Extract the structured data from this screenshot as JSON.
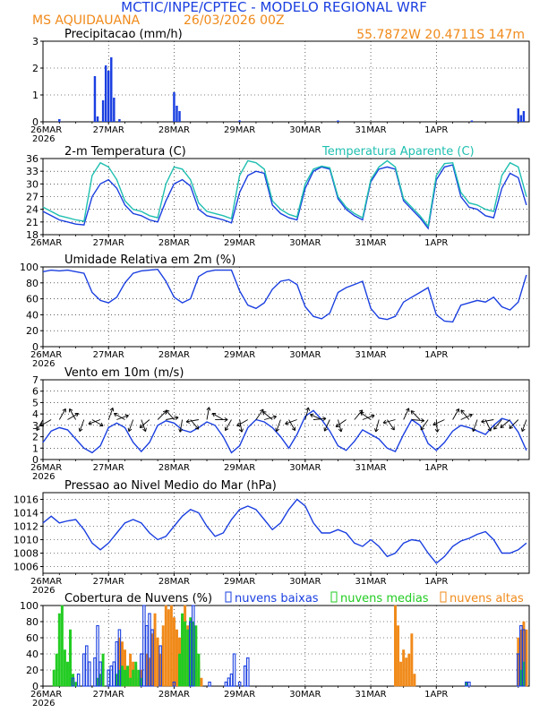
{
  "header": {
    "title": "MCTIC/INPE/CPTEC - MODELO REGIONAL WRF",
    "location": "MS AQUIDAUANA",
    "run": "26/03/2026 00Z",
    "coords": "55.7872W 20.4711S 147m"
  },
  "colors": {
    "blue": "#1a3fe0",
    "cyan": "#1fbfb0",
    "green": "#22cc22",
    "orange": "#f08a1a",
    "title_blue": "#1a3fe0",
    "title_orange": "#f08a1a"
  },
  "days": [
    "26MAR",
    "27MAR",
    "28MAR",
    "29MAR",
    "30MAR",
    "31MAR",
    "1APR"
  ],
  "year": "2026",
  "chart_data": [
    {
      "type": "bar",
      "title": "Precipitacao (mm/h)",
      "ylim": [
        0,
        3
      ],
      "yticks": [
        "0",
        "1",
        "2",
        "3"
      ],
      "x_hours": [
        6,
        19,
        20,
        22,
        23,
        24,
        25,
        26,
        28,
        48,
        49,
        50,
        72,
        108,
        157,
        174,
        175,
        176
      ],
      "values": [
        0.1,
        1.7,
        0.2,
        0.8,
        2.1,
        1.9,
        2.4,
        0.9,
        0.1,
        1.1,
        0.6,
        0.4,
        0.05,
        0.05,
        0.05,
        0.5,
        0.25,
        0.4
      ]
    },
    {
      "type": "line",
      "title": "2-m Temperatura (C)",
      "legend": "Temperatura Aparente (C)",
      "ylim": [
        18,
        36
      ],
      "yticks": [
        "18",
        "21",
        "24",
        "27",
        "30",
        "33",
        "36"
      ],
      "series": [
        {
          "name": "Temperatura",
          "x": [
            0,
            3,
            6,
            9,
            12,
            15,
            18,
            21,
            24,
            27,
            30,
            33,
            36,
            39,
            42,
            45,
            48,
            51,
            54,
            57,
            60,
            63,
            66,
            69,
            72,
            75,
            78,
            81,
            84,
            87,
            90,
            93,
            96,
            99,
            102,
            105,
            108,
            111,
            114,
            117,
            120,
            123,
            126,
            129,
            132,
            135,
            138,
            141,
            144,
            147,
            150,
            153,
            156,
            159,
            162,
            165,
            168,
            171,
            174,
            177
          ],
          "y": [
            23.5,
            22.5,
            21.5,
            21.0,
            20.5,
            20.3,
            27.0,
            30.0,
            31.0,
            29.0,
            25.0,
            23.0,
            22.5,
            21.5,
            21.0,
            26.0,
            30.0,
            31.0,
            29.5,
            24.0,
            22.5,
            22.0,
            21.5,
            20.8,
            28.0,
            32.0,
            33.0,
            32.5,
            25.0,
            23.0,
            22.0,
            21.5,
            29.0,
            33.0,
            34.0,
            33.5,
            26.5,
            24.0,
            22.5,
            21.5,
            30.5,
            33.5,
            34.0,
            33.5,
            26.0,
            24.0,
            22.0,
            19.5,
            31.0,
            34.0,
            34.5,
            27.0,
            24.5,
            24.0,
            22.5,
            22.0,
            29.0,
            32.5,
            31.5,
            25.0
          ]
        },
        {
          "name": "Temperatura Aparente",
          "x": [
            0,
            3,
            6,
            9,
            12,
            15,
            18,
            21,
            24,
            27,
            30,
            33,
            36,
            39,
            42,
            45,
            48,
            51,
            54,
            57,
            60,
            63,
            66,
            69,
            72,
            75,
            78,
            81,
            84,
            87,
            90,
            93,
            96,
            99,
            102,
            105,
            108,
            111,
            114,
            117,
            120,
            123,
            126,
            129,
            132,
            135,
            138,
            141,
            144,
            147,
            150,
            153,
            156,
            159,
            162,
            165,
            168,
            171,
            174,
            177
          ],
          "y": [
            24.5,
            23.5,
            22.5,
            22.0,
            21.5,
            21.2,
            32.0,
            35.0,
            34.0,
            31.0,
            26.0,
            24.0,
            23.5,
            22.5,
            22.0,
            30.0,
            34.0,
            33.5,
            31.0,
            25.5,
            23.5,
            23.0,
            22.5,
            21.8,
            32.0,
            35.5,
            35.0,
            33.5,
            26.0,
            24.0,
            22.8,
            22.2,
            30.0,
            33.5,
            34.2,
            33.8,
            27.0,
            24.5,
            23.0,
            22.0,
            31.0,
            34.0,
            35.5,
            34.0,
            26.5,
            24.5,
            22.5,
            20.0,
            32.0,
            34.8,
            35.0,
            28.0,
            25.5,
            25.0,
            24.0,
            23.5,
            32.0,
            35.0,
            34.0,
            27.0
          ]
        }
      ]
    },
    {
      "type": "line",
      "title": "Umidade Relativa em 2m (%)",
      "ylim": [
        0,
        100
      ],
      "yticks": [
        "0",
        "20",
        "40",
        "60",
        "80",
        "100"
      ],
      "series": [
        {
          "name": "Umidade Relativa",
          "x": [
            0,
            3,
            6,
            9,
            12,
            15,
            18,
            21,
            24,
            27,
            30,
            33,
            36,
            39,
            42,
            45,
            48,
            51,
            54,
            57,
            60,
            63,
            66,
            69,
            72,
            75,
            78,
            81,
            84,
            87,
            90,
            93,
            96,
            99,
            102,
            105,
            108,
            111,
            114,
            117,
            120,
            123,
            126,
            129,
            132,
            135,
            138,
            141,
            144,
            147,
            150,
            153,
            156,
            159,
            162,
            165,
            168,
            171,
            174,
            177
          ],
          "y": [
            94,
            96,
            95,
            96,
            94,
            92,
            68,
            58,
            55,
            62,
            80,
            92,
            95,
            96,
            97,
            82,
            62,
            55,
            60,
            88,
            94,
            96,
            96,
            96,
            70,
            52,
            48,
            55,
            72,
            82,
            84,
            78,
            50,
            38,
            35,
            42,
            68,
            74,
            78,
            82,
            48,
            36,
            34,
            38,
            56,
            62,
            68,
            74,
            40,
            32,
            31,
            52,
            55,
            58,
            56,
            62,
            50,
            46,
            56,
            90
          ]
        }
      ]
    },
    {
      "type": "line",
      "title": "Vento em 10m (m/s)",
      "ylim": [
        0,
        7
      ],
      "yticks": [
        "0",
        "1",
        "2",
        "3",
        "4",
        "5",
        "6",
        "7"
      ],
      "series": [
        {
          "name": "Vento",
          "x": [
            0,
            3,
            6,
            9,
            12,
            15,
            18,
            21,
            24,
            27,
            30,
            33,
            36,
            39,
            42,
            45,
            48,
            51,
            54,
            57,
            60,
            63,
            66,
            69,
            72,
            75,
            78,
            81,
            84,
            87,
            90,
            93,
            96,
            99,
            102,
            105,
            108,
            111,
            114,
            117,
            120,
            123,
            126,
            129,
            132,
            135,
            138,
            141,
            144,
            147,
            150,
            153,
            156,
            159,
            162,
            165,
            168,
            171,
            174,
            177
          ],
          "y": [
            1.5,
            2.5,
            2.8,
            2.6,
            1.8,
            1.0,
            0.6,
            1.2,
            2.8,
            3.2,
            2.8,
            1.5,
            0.7,
            1.5,
            3.0,
            3.4,
            3.2,
            2.6,
            2.4,
            2.8,
            3.3,
            3.0,
            2.0,
            0.6,
            1.2,
            2.8,
            3.5,
            3.3,
            2.8,
            2.0,
            1.0,
            2.2,
            3.8,
            4.3,
            3.5,
            2.5,
            1.2,
            0.8,
            1.6,
            2.6,
            2.2,
            1.8,
            1.0,
            0.7,
            2.2,
            3.5,
            3.0,
            1.4,
            0.8,
            1.5,
            2.5,
            3.0,
            2.8,
            2.5,
            2.2,
            3.0,
            3.6,
            3.4,
            2.4,
            0.8
          ]
        }
      ],
      "barb_x": [
        0,
        3,
        6,
        9,
        12,
        15,
        18,
        21,
        24,
        27,
        30,
        33,
        36,
        39,
        42,
        45,
        48,
        51,
        54,
        57,
        60,
        63,
        66,
        69,
        72,
        75,
        78,
        81,
        84,
        87,
        90,
        93,
        96,
        99,
        102,
        105,
        108,
        111,
        114,
        117,
        120,
        123,
        126,
        129,
        132,
        135,
        138,
        141,
        144,
        147,
        150,
        153,
        156,
        159,
        162,
        165,
        168,
        171,
        174,
        177
      ],
      "barb_dir": [
        210,
        240,
        30,
        60,
        330,
        200,
        120,
        250,
        20,
        70,
        300,
        200,
        160,
        230,
        45,
        80,
        320,
        190,
        140,
        260,
        10,
        90,
        300,
        210,
        170,
        240,
        35,
        75,
        310,
        200,
        150,
        250,
        15,
        85,
        295,
        205,
        165,
        235,
        40,
        70,
        305,
        195,
        145,
        255,
        25,
        95,
        315,
        215,
        175,
        245,
        30,
        65,
        320,
        200,
        155,
        260,
        220,
        230,
        225,
        200
      ]
    },
    {
      "type": "line",
      "title": "Pressao ao Nivel Medio do Mar (hPa)",
      "ylim": [
        1005,
        1017
      ],
      "yticks": [
        "1006",
        "1008",
        "1010",
        "1012",
        "1014",
        "1016"
      ],
      "series": [
        {
          "name": "Pressao",
          "x": [
            0,
            3,
            6,
            9,
            12,
            15,
            18,
            21,
            24,
            27,
            30,
            33,
            36,
            39,
            42,
            45,
            48,
            51,
            54,
            57,
            60,
            63,
            66,
            69,
            72,
            75,
            78,
            81,
            84,
            87,
            90,
            93,
            96,
            99,
            102,
            105,
            108,
            111,
            114,
            117,
            120,
            123,
            126,
            129,
            132,
            135,
            138,
            141,
            144,
            147,
            150,
            153,
            156,
            159,
            162,
            165,
            168,
            171,
            174,
            177
          ],
          "y": [
            1012.5,
            1013.5,
            1012.5,
            1012.8,
            1013.0,
            1011.5,
            1009.5,
            1008.5,
            1009.5,
            1011.0,
            1012.5,
            1013.0,
            1012.5,
            1011.0,
            1010.0,
            1010.5,
            1012.0,
            1013.5,
            1014.5,
            1014.0,
            1012.0,
            1010.5,
            1011.0,
            1013.0,
            1014.5,
            1015.0,
            1014.5,
            1013.0,
            1011.5,
            1012.5,
            1014.5,
            1016.0,
            1015.0,
            1012.5,
            1011.0,
            1011.0,
            1011.5,
            1011.0,
            1009.5,
            1009.0,
            1010.0,
            1009.0,
            1007.5,
            1008.0,
            1009.5,
            1010.0,
            1009.8,
            1008.0,
            1006.5,
            1007.5,
            1009.0,
            1009.8,
            1010.2,
            1010.8,
            1011.2,
            1010.0,
            1008.0,
            1008.0,
            1008.5,
            1009.5
          ]
        }
      ]
    },
    {
      "type": "bar",
      "title": "Cobertura de Nuvens (%)",
      "legend": [
        "nuvens baixas",
        "nuvens medias",
        "nuvens altas"
      ],
      "ylim": [
        0,
        100
      ],
      "yticks": [
        "0",
        "20",
        "40",
        "60",
        "80",
        "100"
      ],
      "series": [
        {
          "name": "nuvens baixas",
          "x": [
            11,
            13,
            15,
            16,
            17,
            19,
            20,
            21,
            24,
            25,
            26,
            27,
            28,
            36,
            37,
            38,
            39,
            40,
            43,
            48,
            54,
            55,
            61,
            67,
            68,
            69,
            70,
            72,
            74,
            75,
            155,
            156,
            174,
            175,
            176
          ],
          "values": [
            10,
            15,
            40,
            50,
            30,
            35,
            75,
            30,
            20,
            25,
            30,
            55,
            70,
            40,
            100,
            75,
            90,
            70,
            50,
            5,
            80,
            100,
            5,
            5,
            10,
            15,
            40,
            5,
            25,
            35,
            5,
            5,
            40,
            75,
            70
          ]
        },
        {
          "name": "nuvens medias",
          "x": [
            4,
            5,
            6,
            7,
            8,
            9,
            10,
            11,
            12,
            20,
            21,
            22,
            27,
            28,
            29,
            30,
            31,
            32,
            33,
            34,
            35,
            36,
            50,
            51,
            52,
            53,
            54,
            55,
            56,
            57,
            155,
            175,
            176
          ],
          "values": [
            20,
            40,
            90,
            100,
            45,
            30,
            70,
            15,
            5,
            10,
            15,
            40,
            15,
            20,
            25,
            20,
            25,
            10,
            20,
            30,
            20,
            10,
            40,
            90,
            80,
            70,
            85,
            80,
            75,
            40,
            5,
            20,
            30
          ]
        },
        {
          "name": "nuvens altas",
          "x": [
            28,
            29,
            30,
            31,
            32,
            33,
            34,
            35,
            36,
            38,
            39,
            40,
            41,
            42,
            43,
            44,
            45,
            46,
            47,
            48,
            49,
            50,
            51,
            52,
            53,
            54,
            55,
            56,
            57,
            58,
            129,
            130,
            131,
            132,
            133,
            134,
            135,
            136,
            174,
            175,
            176,
            177
          ],
          "values": [
            60,
            55,
            45,
            20,
            40,
            30,
            25,
            10,
            20,
            40,
            35,
            65,
            90,
            60,
            40,
            75,
            100,
            95,
            100,
            85,
            70,
            60,
            85,
            100,
            75,
            60,
            50,
            20,
            30,
            10,
            100,
            75,
            30,
            45,
            35,
            40,
            65,
            15,
            60,
            70,
            80,
            70
          ]
        }
      ]
    }
  ]
}
